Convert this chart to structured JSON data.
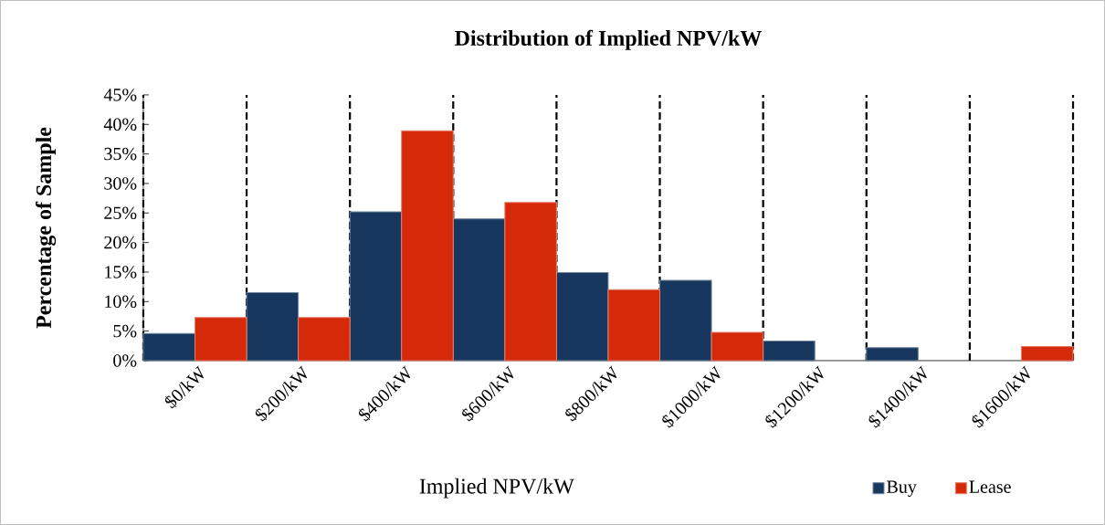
{
  "chart_data": {
    "type": "bar",
    "title": "Distribution of Implied NPV/kW",
    "xlabel": "Implied NPV/kW",
    "ylabel": "Percentage of Sample",
    "categories": [
      "$0/kW",
      "$200/kW",
      "$400/kW",
      "$600/kW",
      "$800/kW",
      "$1000/kW",
      "$1200/kW",
      "$1400/kW",
      "$1600/kW"
    ],
    "series": [
      {
        "name": "Buy",
        "color": "#17375e",
        "values": [
          4.6,
          11.5,
          25.2,
          24.0,
          14.9,
          13.6,
          3.3,
          2.2,
          null
        ]
      },
      {
        "name": "Lease",
        "color": "#d42a0a",
        "values": [
          7.3,
          7.3,
          38.9,
          26.8,
          12.0,
          4.8,
          null,
          null,
          2.4
        ]
      }
    ],
    "ylim": [
      0,
      45
    ],
    "yticks": [
      {
        "value": 0,
        "label": "0%"
      },
      {
        "value": 5,
        "label": "5%"
      },
      {
        "value": 10,
        "label": "10%"
      },
      {
        "value": 15,
        "label": "15%"
      },
      {
        "value": 20,
        "label": "20%"
      },
      {
        "value": 25,
        "label": "25%"
      },
      {
        "value": 30,
        "label": "30%"
      },
      {
        "value": 35,
        "label": "35%"
      },
      {
        "value": 40,
        "label": "40%"
      },
      {
        "value": 45,
        "label": "45%"
      }
    ],
    "grid": "x",
    "legend": "bottom right"
  }
}
